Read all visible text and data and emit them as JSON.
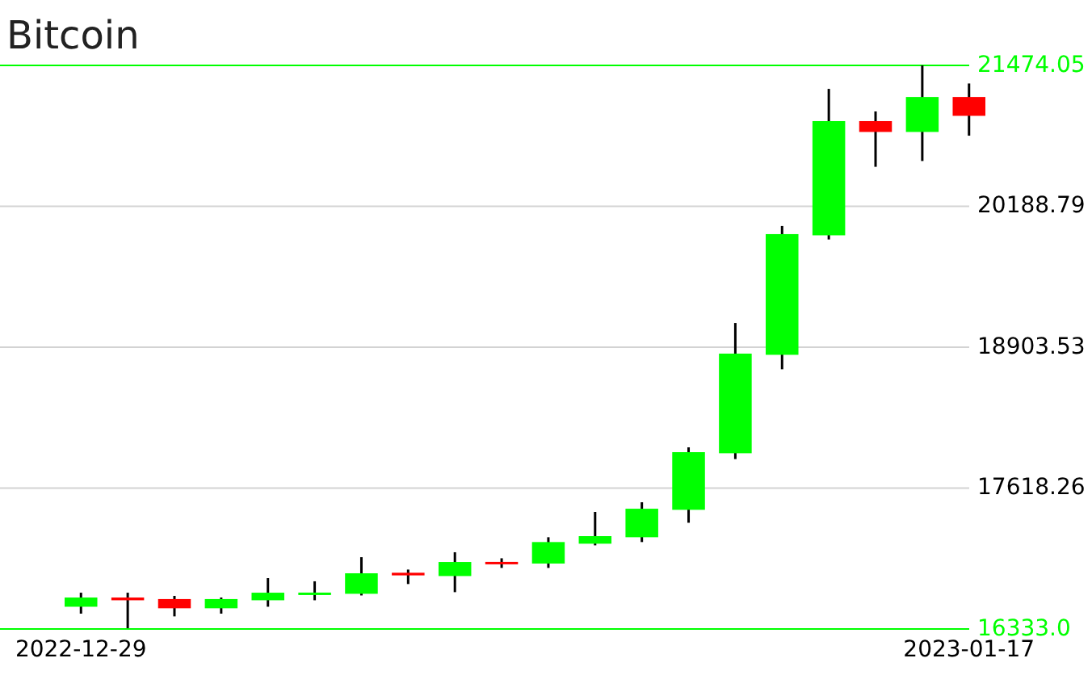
{
  "chart_data": {
    "type": "candlestick",
    "title": "Bitcoin",
    "categories": [
      "2022-12-29",
      null,
      null,
      null,
      null,
      null,
      null,
      null,
      null,
      null,
      null,
      null,
      null,
      null,
      null,
      null,
      null,
      null,
      null,
      "2023-01-17"
    ],
    "ohlc": [
      [
        16536,
        16664,
        16473,
        16620
      ],
      [
        16620,
        16664,
        16340,
        16595
      ],
      [
        16606,
        16635,
        16448,
        16522
      ],
      [
        16522,
        16620,
        16473,
        16606
      ],
      [
        16595,
        16797,
        16536,
        16664
      ],
      [
        16655,
        16768,
        16595,
        16665
      ],
      [
        16654,
        16988,
        16639,
        16841
      ],
      [
        16846,
        16875,
        16743,
        16822
      ],
      [
        16816,
        17033,
        16669,
        16944
      ],
      [
        16945,
        16978,
        16890,
        16940
      ],
      [
        16930,
        17170,
        16890,
        17126
      ],
      [
        17111,
        17401,
        17096,
        17180
      ],
      [
        17170,
        17489,
        17126,
        17430
      ],
      [
        17420,
        17990,
        17302,
        17946
      ],
      [
        17936,
        19124,
        17883,
        18845
      ],
      [
        18834,
        20009,
        18702,
        19935
      ],
      [
        19924,
        21260,
        19886,
        20966
      ],
      [
        20966,
        21054,
        20549,
        20867
      ],
      [
        20867,
        21474,
        20602,
        21186
      ],
      [
        21186,
        21309,
        20833,
        21014
      ]
    ],
    "colors": [
      "#00ff00",
      "#ff0000",
      "#ff0000",
      "#00ff00",
      "#00ff00",
      "#00ff00",
      "#00ff00",
      "#ff0000",
      "#00ff00",
      "#ff0000",
      "#00ff00",
      "#00ff00",
      "#00ff00",
      "#00ff00",
      "#00ff00",
      "#00ff00",
      "#00ff00",
      "#ff0000",
      "#00ff00",
      "#ff0000"
    ],
    "ylim": [
      16333,
      21474.05
    ],
    "yticks": [
      {
        "value": 16333,
        "label": "16333.0"
      },
      17618.26,
      18903.53,
      20188.79,
      21474.05
    ],
    "grid": "y"
  }
}
